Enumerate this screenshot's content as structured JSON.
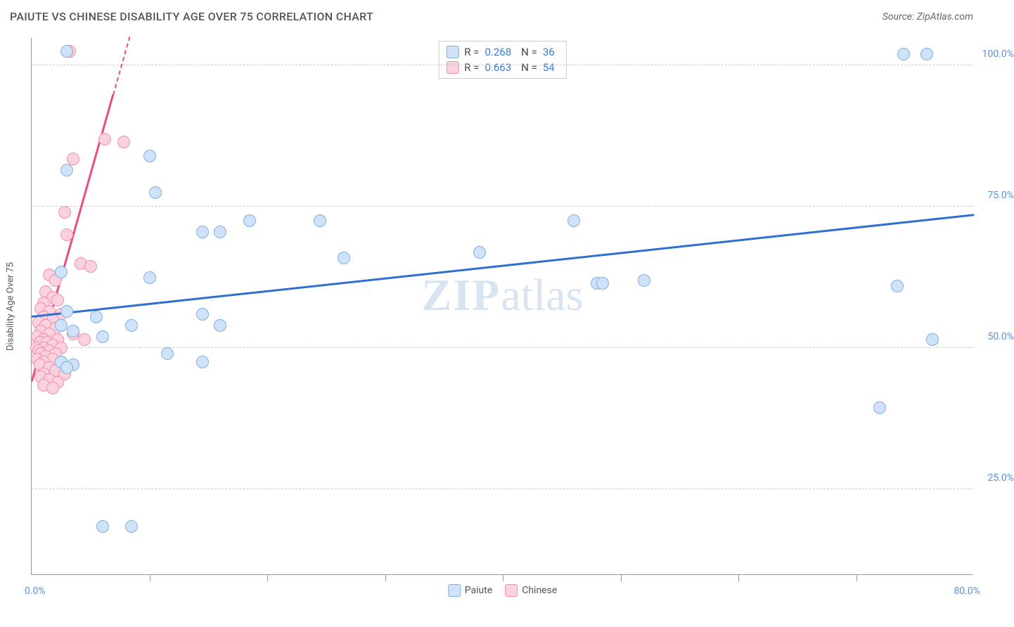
{
  "header": {
    "title": "PAIUTE VS CHINESE DISABILITY AGE OVER 75 CORRELATION CHART",
    "source": "Source: ZipAtlas.com"
  },
  "watermark": {
    "zip": "ZIP",
    "atlas": "atlas"
  },
  "chart": {
    "type": "scatter",
    "background_color": "#ffffff",
    "grid_color": "#cccccc",
    "axis_color": "#999999",
    "x_axis": {
      "min": 0,
      "max": 80,
      "tick_step": 10,
      "label_min": "0.0%",
      "label_max": "80.0%"
    },
    "y_axis": {
      "min": 10,
      "max": 105,
      "title": "Disability Age Over 75",
      "gridlines": [
        25,
        50,
        75,
        100
      ],
      "labels": [
        "25.0%",
        "50.0%",
        "75.0%",
        "100.0%"
      ],
      "label_color": "#5b8fd6",
      "label_fontsize": 14
    },
    "series": [
      {
        "name": "Paiute",
        "color_fill": "#cfe2f7",
        "color_stroke": "#7fb0e0",
        "marker_radius": 9,
        "trend": {
          "x1": 0,
          "y1": 55.5,
          "x2": 80,
          "y2": 73.5,
          "color": "#2f6fd0",
          "width": 2.5
        },
        "stats": {
          "R": "0.268",
          "N": "36"
        },
        "points": [
          [
            3.0,
            102.5
          ],
          [
            74.0,
            102.0
          ],
          [
            76.0,
            102.0
          ],
          [
            10.0,
            84.0
          ],
          [
            3.0,
            81.5
          ],
          [
            10.5,
            77.5
          ],
          [
            18.5,
            72.5
          ],
          [
            24.5,
            72.5
          ],
          [
            46.0,
            72.5
          ],
          [
            14.5,
            70.5
          ],
          [
            16.0,
            70.5
          ],
          [
            38.0,
            67.0
          ],
          [
            26.5,
            66.0
          ],
          [
            2.5,
            63.5
          ],
          [
            10.0,
            62.5
          ],
          [
            52.0,
            62.0
          ],
          [
            48.0,
            61.5
          ],
          [
            48.5,
            61.5
          ],
          [
            73.5,
            61.0
          ],
          [
            14.5,
            56.0
          ],
          [
            5.5,
            55.5
          ],
          [
            2.5,
            54.0
          ],
          [
            8.5,
            54.0
          ],
          [
            16.0,
            54.0
          ],
          [
            3.5,
            53.0
          ],
          [
            6.0,
            52.0
          ],
          [
            76.5,
            51.5
          ],
          [
            11.5,
            49.0
          ],
          [
            14.5,
            47.5
          ],
          [
            2.5,
            47.5
          ],
          [
            3.5,
            47.0
          ],
          [
            3.0,
            46.5
          ],
          [
            72.0,
            39.5
          ],
          [
            6.0,
            18.5
          ],
          [
            8.5,
            18.5
          ],
          [
            3.0,
            56.5
          ]
        ]
      },
      {
        "name": "Chinese",
        "color_fill": "#f9d2dd",
        "color_stroke": "#ef8fb1",
        "marker_radius": 9,
        "trend": {
          "x1": 0,
          "y1": 44.0,
          "x2": 8.3,
          "y2": 105.0,
          "color": "#e94b86",
          "width": 2.5,
          "dash_from_x": 6.9
        },
        "stats": {
          "R": "0.663",
          "N": "54"
        },
        "points": [
          [
            3.2,
            102.5
          ],
          [
            6.2,
            87.0
          ],
          [
            7.8,
            86.5
          ],
          [
            3.5,
            83.5
          ],
          [
            2.8,
            74.0
          ],
          [
            3.0,
            70.0
          ],
          [
            4.2,
            65.0
          ],
          [
            5.0,
            64.5
          ],
          [
            1.5,
            63.0
          ],
          [
            2.0,
            62.0
          ],
          [
            1.2,
            60.0
          ],
          [
            1.8,
            59.0
          ],
          [
            2.2,
            58.5
          ],
          [
            1.0,
            58.0
          ],
          [
            0.8,
            57.0
          ],
          [
            1.5,
            56.5
          ],
          [
            2.5,
            56.0
          ],
          [
            1.0,
            55.5
          ],
          [
            1.8,
            55.0
          ],
          [
            0.6,
            54.5
          ],
          [
            1.2,
            54.0
          ],
          [
            2.0,
            53.5
          ],
          [
            0.8,
            53.0
          ],
          [
            1.5,
            52.5
          ],
          [
            3.5,
            52.5
          ],
          [
            0.5,
            52.0
          ],
          [
            1.0,
            51.5
          ],
          [
            2.2,
            51.5
          ],
          [
            4.5,
            51.5
          ],
          [
            0.7,
            51.0
          ],
          [
            1.3,
            51.0
          ],
          [
            1.8,
            50.5
          ],
          [
            0.4,
            50.0
          ],
          [
            1.0,
            50.0
          ],
          [
            2.5,
            50.0
          ],
          [
            0.6,
            49.5
          ],
          [
            1.5,
            49.5
          ],
          [
            0.8,
            49.0
          ],
          [
            2.0,
            49.0
          ],
          [
            1.2,
            48.5
          ],
          [
            0.5,
            48.0
          ],
          [
            1.8,
            48.0
          ],
          [
            1.0,
            47.5
          ],
          [
            2.5,
            47.5
          ],
          [
            0.7,
            47.0
          ],
          [
            1.5,
            46.5
          ],
          [
            2.0,
            46.0
          ],
          [
            1.0,
            45.5
          ],
          [
            2.8,
            45.5
          ],
          [
            0.8,
            45.0
          ],
          [
            1.5,
            44.5
          ],
          [
            2.2,
            44.0
          ],
          [
            1.0,
            43.5
          ],
          [
            1.8,
            43.0
          ]
        ]
      }
    ],
    "legend": {
      "position": "bottom-center",
      "items": [
        "Paiute",
        "Chinese"
      ]
    }
  }
}
